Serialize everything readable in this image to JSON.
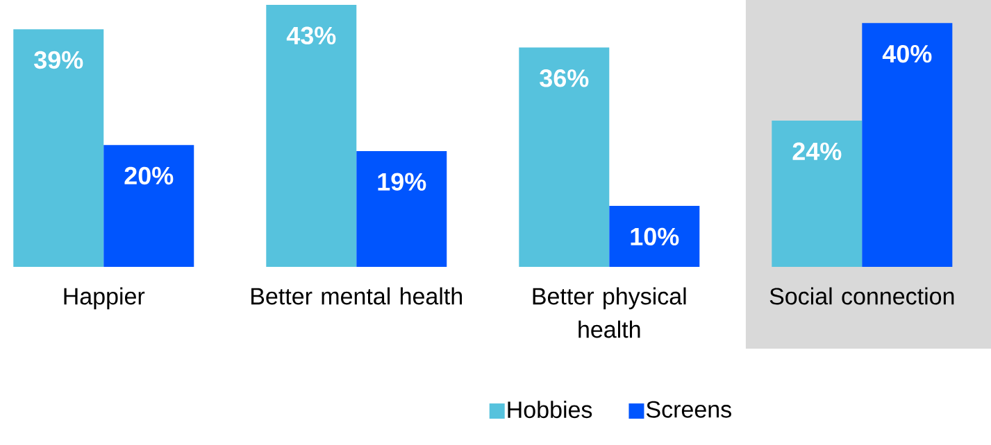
{
  "chart_data": {
    "type": "bar",
    "categories": [
      "Happier",
      "Better mental health",
      "Better physical health",
      "Social connection"
    ],
    "series": [
      {
        "name": "Hobbies",
        "color": "#56c2dd",
        "values": [
          39,
          43,
          36,
          24
        ],
        "value_labels": [
          "39%",
          "43%",
          "36%",
          "24%"
        ]
      },
      {
        "name": "Screens",
        "color": "#0055fe",
        "values": [
          20,
          19,
          10,
          40
        ],
        "value_labels": [
          "20%",
          "19%",
          "10%",
          "40%"
        ]
      }
    ],
    "bands": [
      {
        "axis": "x",
        "from": "Social connection",
        "to": "Social connection",
        "color": "#d9d9d9"
      }
    ],
    "legend": "bottom"
  }
}
